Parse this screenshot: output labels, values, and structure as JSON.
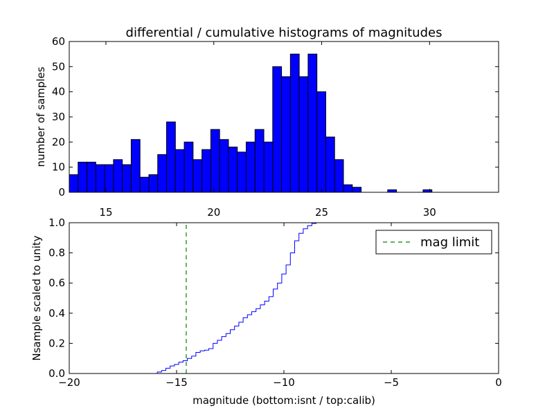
{
  "chart_data": [
    {
      "type": "bar",
      "title": "differential / cumulative histograms of magnitudes",
      "xlabel": "",
      "ylabel": "number of samples",
      "xlim": [
        13.3,
        33.2
      ],
      "ylim": [
        0,
        60
      ],
      "xticks": [
        15,
        20,
        25,
        30
      ],
      "yticks": [
        0,
        10,
        20,
        30,
        40,
        50,
        60
      ],
      "bin_start": 13.3,
      "bin_width": 0.41,
      "values": [
        7,
        12,
        12,
        11,
        11,
        13,
        11,
        21,
        6,
        7,
        15,
        28,
        17,
        20,
        13,
        17,
        25,
        21,
        18,
        16,
        20,
        25,
        20,
        50,
        46,
        55,
        46,
        55,
        40,
        22,
        13,
        3,
        2,
        0,
        0,
        0,
        1,
        0,
        0,
        0,
        1,
        0,
        0,
        0,
        0,
        0,
        0,
        0
      ],
      "color": "#0000ff"
    },
    {
      "type": "line",
      "title": "",
      "xlabel": "magnitude (bottom:isnt / top:calib)",
      "ylabel": "Nsample scaled to unity",
      "xlim": [
        -20,
        0
      ],
      "ylim": [
        0,
        1
      ],
      "xticks": [
        -20,
        -15,
        -10,
        -5,
        0
      ],
      "yticks": [
        0.0,
        0.2,
        0.4,
        0.6,
        0.8,
        1.0
      ],
      "ytick_labels": [
        "0.0",
        "0.2",
        "0.4",
        "0.6",
        "0.8",
        "1.0"
      ],
      "series": [
        {
          "style": "step",
          "color": "#0000ff",
          "x": [
            -20,
            -16.1,
            -15.9,
            -15.7,
            -15.5,
            -15.3,
            -15.1,
            -14.9,
            -14.7,
            -14.5,
            -14.3,
            -14.1,
            -13.9,
            -13.7,
            -13.5,
            -13.3,
            -13.1,
            -12.9,
            -12.7,
            -12.5,
            -12.3,
            -12.1,
            -11.9,
            -11.7,
            -11.5,
            -11.3,
            -11.1,
            -10.9,
            -10.7,
            -10.5,
            -10.3,
            -10.1,
            -9.9,
            -9.7,
            -9.5,
            -9.3,
            -9.1,
            -8.9,
            -8.7,
            -8.5,
            -8.3,
            -8.1,
            -7.9,
            -7.7,
            -7.5,
            -5.0,
            -0.05,
            0
          ],
          "y": [
            0,
            0,
            0.01,
            0.02,
            0.035,
            0.05,
            0.06,
            0.075,
            0.085,
            0.1,
            0.115,
            0.14,
            0.15,
            0.155,
            0.165,
            0.2,
            0.22,
            0.245,
            0.265,
            0.29,
            0.315,
            0.34,
            0.37,
            0.39,
            0.41,
            0.43,
            0.455,
            0.48,
            0.51,
            0.56,
            0.6,
            0.66,
            0.72,
            0.8,
            0.88,
            0.93,
            0.96,
            0.98,
            0.995,
            1.0,
            1.0,
            1.0,
            1.0,
            1.0,
            1.0,
            1.0,
            1.0,
            0
          ]
        },
        {
          "name": "mag limit",
          "style": "dashed",
          "color": "#008000",
          "x": [
            -14.55,
            -14.55
          ],
          "y": [
            0,
            1
          ]
        }
      ],
      "legend": {
        "position": "top-right",
        "entries": [
          "mag limit"
        ]
      }
    }
  ]
}
